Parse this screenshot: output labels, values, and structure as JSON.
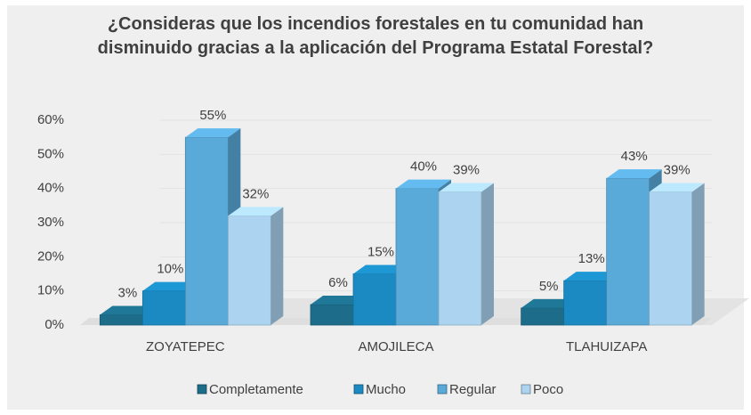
{
  "chart_data": {
    "type": "bar",
    "title": "¿Consideras que los incendios forestales en tu comunidad han disminuido gracias a la aplicación del Programa Estatal Forestal?",
    "categories": [
      "ZOYATEPEC",
      "AMOJILECA",
      "TLAHUIZAPA"
    ],
    "series": [
      {
        "name": "Completamente",
        "color": "#1d6d8a",
        "values": [
          3,
          6,
          5
        ],
        "value_labels": [
          "3%",
          "6%",
          "5%"
        ]
      },
      {
        "name": "Mucho",
        "color": "#1b8ac2",
        "values": [
          10,
          15,
          13
        ],
        "value_labels": [
          "10%",
          "15%",
          "13%"
        ]
      },
      {
        "name": "Regular",
        "color": "#5aaad9",
        "values": [
          55,
          40,
          43
        ],
        "value_labels": [
          "55%",
          "40%",
          "43%"
        ]
      },
      {
        "name": "Poco",
        "color": "#acd4f0",
        "values": [
          32,
          39,
          39
        ],
        "value_labels": [
          "32%",
          "39%",
          "39%"
        ]
      }
    ],
    "ylim": [
      0,
      60
    ],
    "yticks": [
      {
        "value": 0,
        "label": "0%"
      },
      {
        "value": 10,
        "label": "10%"
      },
      {
        "value": 20,
        "label": "20%"
      },
      {
        "value": 30,
        "label": "30%"
      },
      {
        "value": 40,
        "label": "40%"
      },
      {
        "value": 50,
        "label": "50%"
      },
      {
        "value": 60,
        "label": "60%"
      }
    ],
    "grid": true,
    "legend": "bottom"
  }
}
